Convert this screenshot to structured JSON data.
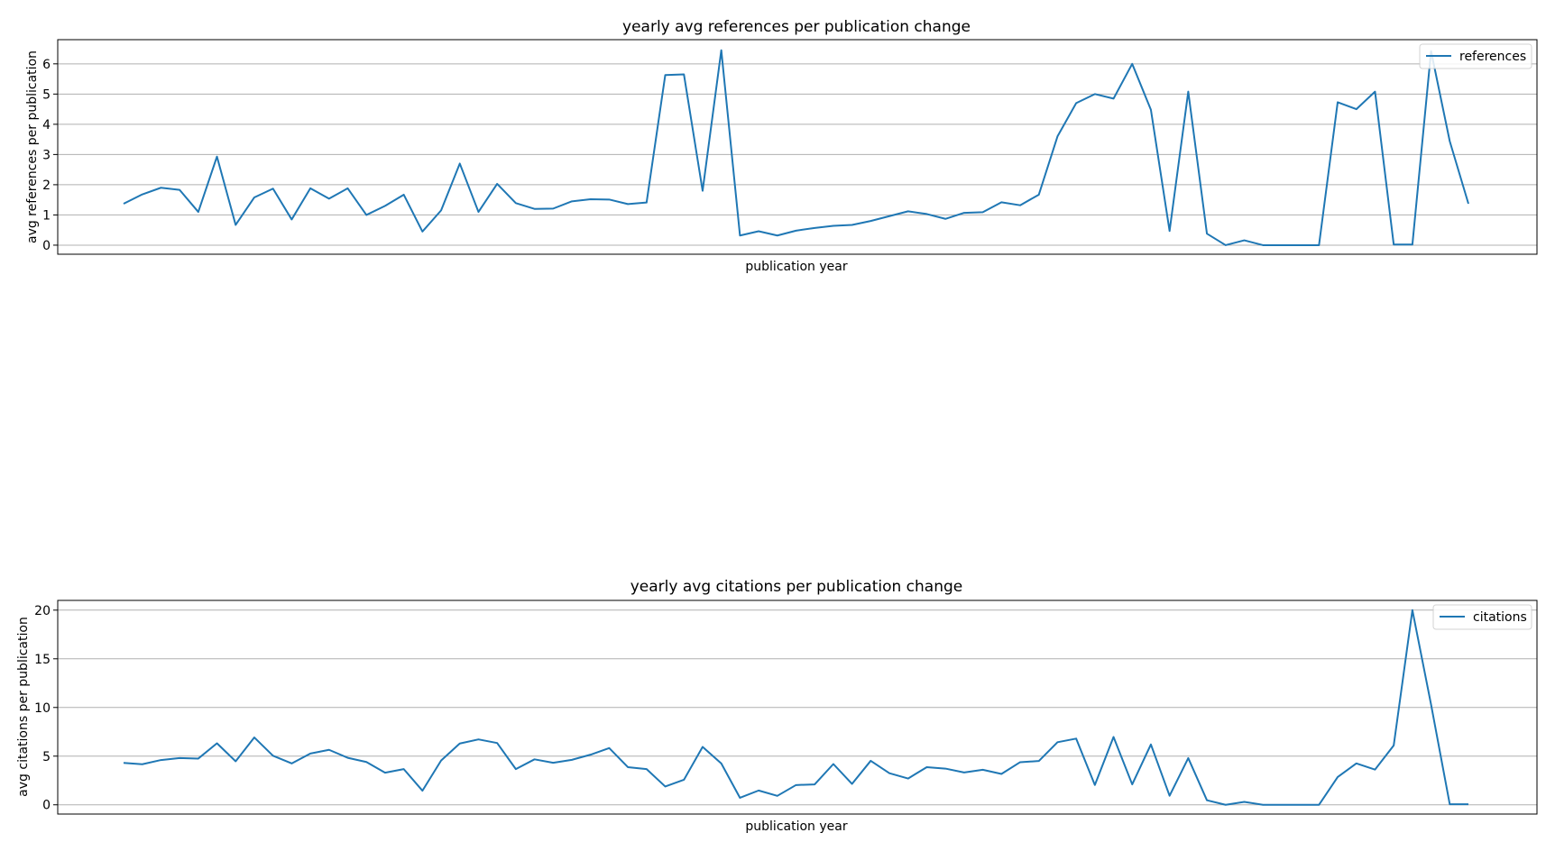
{
  "colors": {
    "line": "#1f77b4",
    "grid": "#b0b0b0",
    "axes": "#000000"
  },
  "chart_data": [
    {
      "type": "line",
      "title": "yearly avg references per publication change",
      "xlabel": "publication year",
      "ylabel": "avg references per publication",
      "ylim": [
        -0.3,
        6.8
      ],
      "yticks": [
        "0",
        "1",
        "2",
        "3",
        "4",
        "5",
        "6"
      ],
      "grid": "horizontal",
      "legend_placement": "upper-right",
      "series": [
        {
          "name": "references",
          "values": [
            1.37,
            1.68,
            1.9,
            1.83,
            1.1,
            2.93,
            0.67,
            1.58,
            1.87,
            0.85,
            1.88,
            1.54,
            1.88,
            1.0,
            1.3,
            1.67,
            0.45,
            1.15,
            2.7,
            1.1,
            2.03,
            1.39,
            1.2,
            1.21,
            1.45,
            1.52,
            1.51,
            1.36,
            1.41,
            5.63,
            5.65,
            1.8,
            6.45,
            0.32,
            0.46,
            0.32,
            0.48,
            0.57,
            0.64,
            0.67,
            0.8,
            0.96,
            1.12,
            1.03,
            0.87,
            1.07,
            1.09,
            1.42,
            1.32,
            1.67,
            3.6,
            4.7,
            5.0,
            4.85,
            6.0,
            4.48,
            0.47,
            5.08,
            0.38,
            0.0,
            0.16,
            0.0,
            0.0,
            0.0,
            0.0,
            4.73,
            4.5,
            5.08,
            0.02,
            0.02,
            6.42,
            3.44,
            1.37
          ]
        }
      ]
    },
    {
      "type": "line",
      "title": "yearly avg citations per publication change",
      "xlabel": "publication year",
      "ylabel": "avg citations per publication",
      "ylim": [
        -0.95,
        21.0
      ],
      "yticks": [
        "0",
        "5",
        "10",
        "15",
        "20"
      ],
      "grid": "horizontal",
      "legend_placement": "upper-right",
      "series": [
        {
          "name": "citations",
          "values": [
            4.3,
            4.17,
            4.6,
            4.8,
            4.75,
            6.32,
            4.47,
            6.92,
            5.04,
            4.25,
            5.27,
            5.65,
            4.83,
            4.4,
            3.3,
            3.67,
            1.45,
            4.55,
            6.3,
            6.72,
            6.35,
            3.67,
            4.67,
            4.32,
            4.62,
            5.15,
            5.83,
            3.87,
            3.67,
            1.88,
            2.57,
            5.95,
            4.25,
            0.72,
            1.47,
            0.92,
            2.03,
            2.1,
            4.19,
            2.15,
            4.52,
            3.25,
            2.7,
            3.87,
            3.72,
            3.32,
            3.6,
            3.17,
            4.38,
            4.5,
            6.43,
            6.8,
            2.04,
            6.97,
            2.1,
            6.2,
            0.93,
            4.8,
            0.47,
            0.0,
            0.3,
            0.0,
            0.0,
            0.0,
            0.0,
            2.85,
            4.25,
            3.62,
            6.1,
            20.0,
            10.3,
            0.06,
            0.06
          ]
        }
      ]
    }
  ]
}
